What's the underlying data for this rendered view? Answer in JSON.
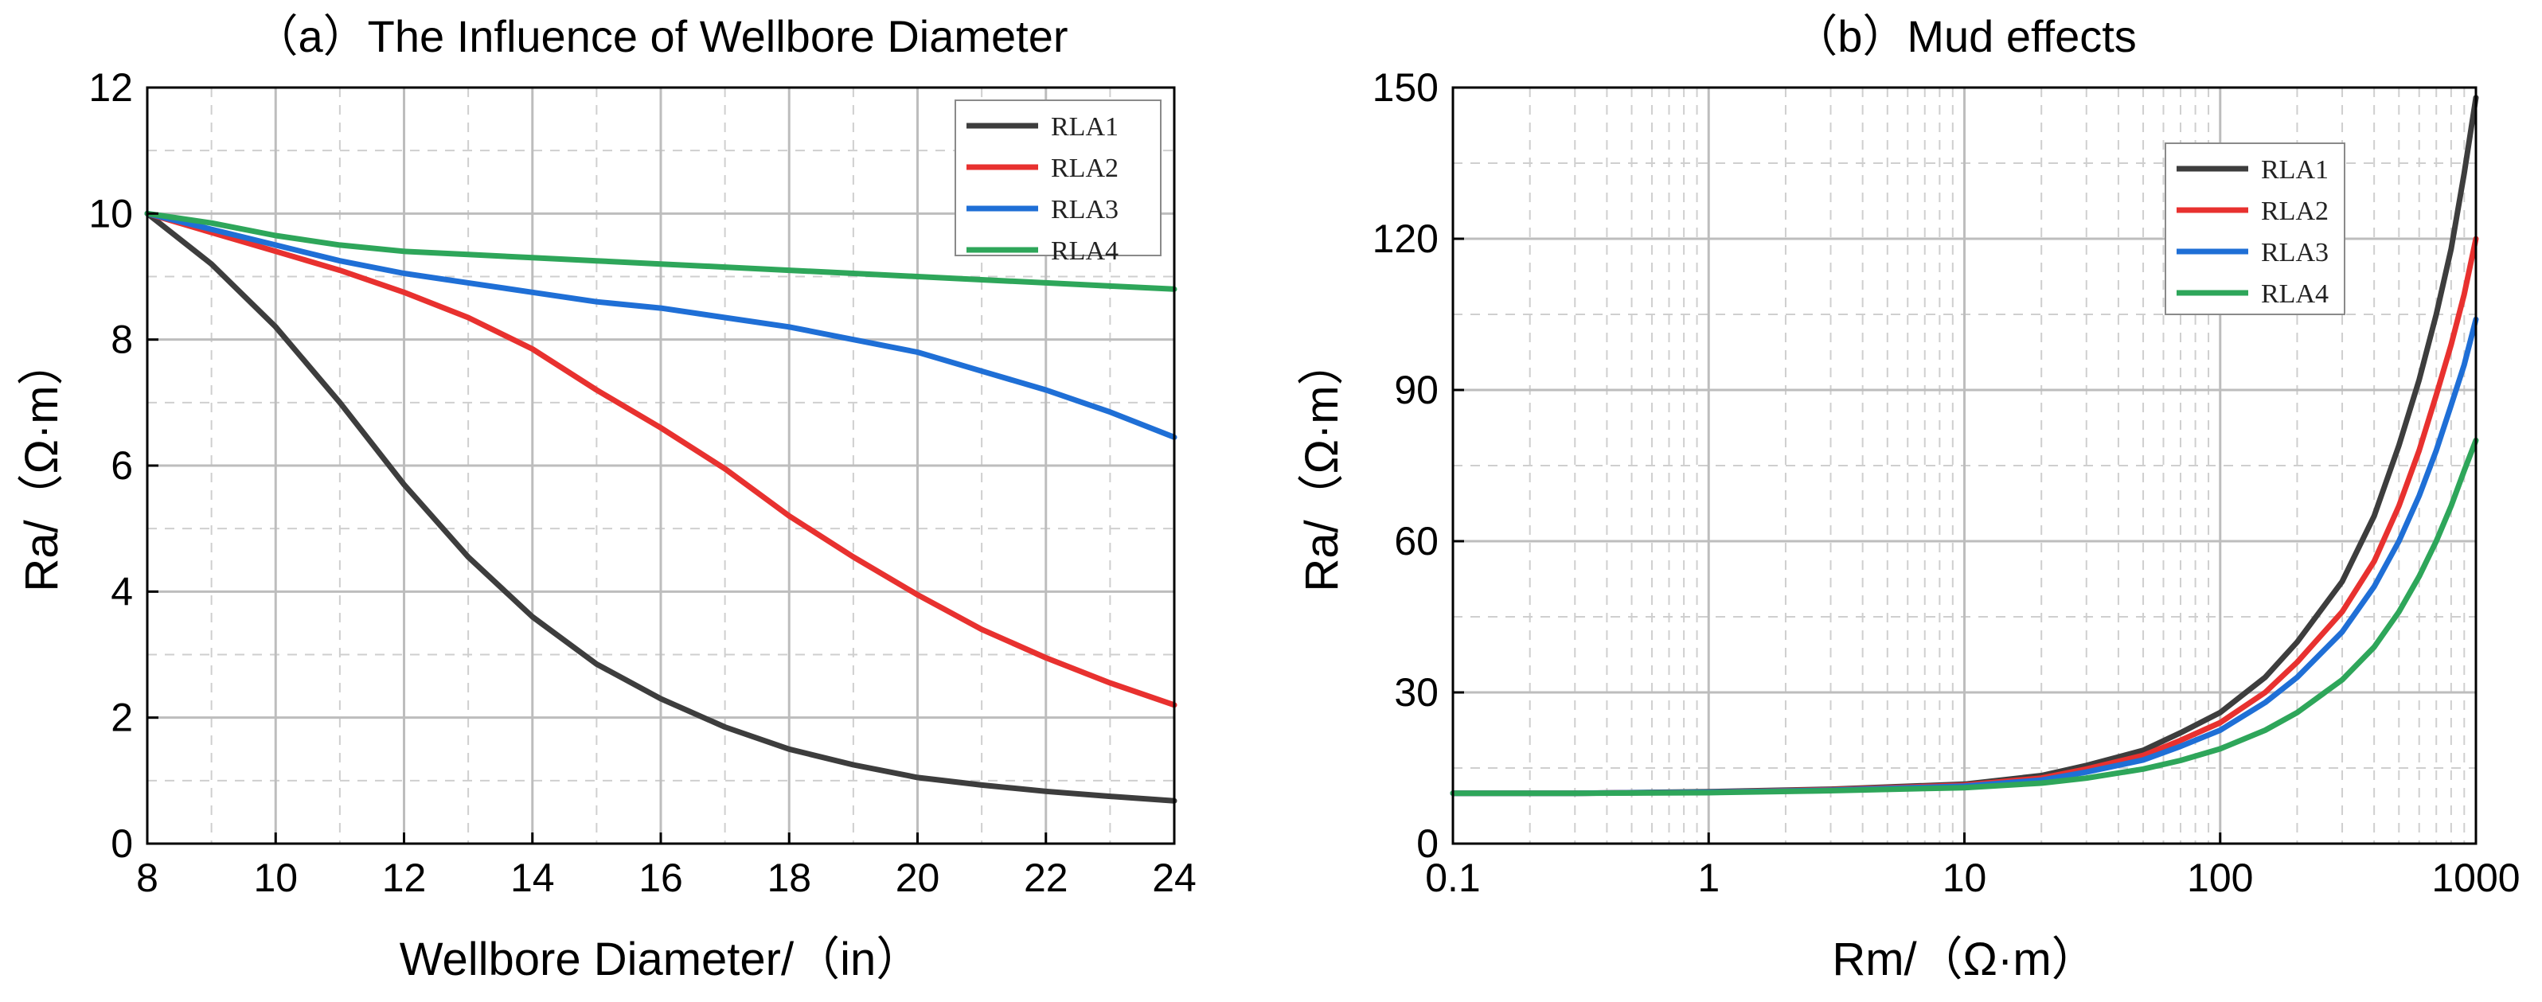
{
  "chart_data": [
    {
      "type": "line",
      "title": "（a）The Influence of Wellbore Diameter",
      "xlabel": "Wellbore Diameter/（in）",
      "ylabel": "Ra/（Ω·m）",
      "xscale": "linear",
      "xlim": [
        8,
        24
      ],
      "ylim": [
        0,
        12
      ],
      "xticks": [
        8,
        10,
        12,
        14,
        16,
        18,
        20,
        22,
        24
      ],
      "yticks": [
        0,
        2,
        4,
        6,
        8,
        10,
        12
      ],
      "xminor": [
        9,
        11,
        13,
        15,
        17,
        19,
        21,
        23
      ],
      "yminor": [
        1,
        3,
        5,
        7,
        9,
        11
      ],
      "grid": true,
      "legend_position": "top-right",
      "series": [
        {
          "name": "RLA1",
          "color": "#3d3d3d",
          "x": [
            8,
            9,
            10,
            11,
            12,
            13,
            14,
            15,
            16,
            17,
            18,
            19,
            20,
            21,
            22,
            23,
            24
          ],
          "y": [
            10.0,
            9.2,
            8.2,
            7.0,
            5.7,
            4.55,
            3.6,
            2.85,
            2.3,
            1.85,
            1.5,
            1.25,
            1.05,
            0.93,
            0.83,
            0.75,
            0.68
          ]
        },
        {
          "name": "RLA2",
          "color": "#e8312f",
          "x": [
            8,
            9,
            10,
            11,
            12,
            13,
            14,
            15,
            16,
            17,
            18,
            19,
            20,
            21,
            22,
            23,
            24
          ],
          "y": [
            10.0,
            9.7,
            9.4,
            9.1,
            8.75,
            8.35,
            7.85,
            7.2,
            6.6,
            5.95,
            5.2,
            4.55,
            3.95,
            3.4,
            2.95,
            2.55,
            2.2
          ]
        },
        {
          "name": "RLA3",
          "color": "#1f6fd6",
          "x": [
            8,
            9,
            10,
            11,
            12,
            13,
            14,
            15,
            16,
            17,
            18,
            19,
            20,
            21,
            22,
            23,
            24
          ],
          "y": [
            10.0,
            9.75,
            9.5,
            9.25,
            9.05,
            8.9,
            8.75,
            8.6,
            8.5,
            8.35,
            8.2,
            8.0,
            7.8,
            7.5,
            7.2,
            6.85,
            6.45
          ]
        },
        {
          "name": "RLA4",
          "color": "#2ea65a",
          "x": [
            8,
            9,
            10,
            11,
            12,
            13,
            14,
            15,
            16,
            17,
            18,
            19,
            20,
            21,
            22,
            23,
            24
          ],
          "y": [
            10.0,
            9.85,
            9.65,
            9.5,
            9.4,
            9.35,
            9.3,
            9.25,
            9.2,
            9.15,
            9.1,
            9.05,
            9.0,
            8.95,
            8.9,
            8.85,
            8.8
          ]
        }
      ]
    },
    {
      "type": "line",
      "title": "（b）Mud effects",
      "xlabel": "Rm/（Ω·m）",
      "ylabel": "Ra/（Ω·m）",
      "xscale": "log",
      "xlim": [
        0.1,
        1000
      ],
      "ylim": [
        0,
        150
      ],
      "xticks": [
        0.1,
        1,
        10,
        100,
        1000
      ],
      "xtick_labels": [
        "0.1",
        "1",
        "10",
        "100",
        "1000"
      ],
      "yticks": [
        0,
        30,
        60,
        90,
        120,
        150
      ],
      "yminor": [
        15,
        45,
        75,
        105,
        135
      ],
      "grid": true,
      "legend_position": "top-right",
      "series": [
        {
          "name": "RLA1",
          "color": "#3d3d3d",
          "x": [
            0.1,
            0.3,
            1,
            3,
            10,
            20,
            30,
            50,
            70,
            100,
            150,
            200,
            300,
            400,
            500,
            600,
            700,
            800,
            900,
            1000
          ],
          "y": [
            10,
            10,
            10.3,
            10.8,
            11.8,
            13.5,
            15.5,
            18.5,
            22,
            26,
            33,
            40,
            52,
            65,
            79,
            92,
            105,
            118,
            133,
            148
          ]
        },
        {
          "name": "RLA2",
          "color": "#e8312f",
          "x": [
            0.1,
            0.3,
            1,
            3,
            10,
            20,
            30,
            50,
            70,
            100,
            150,
            200,
            300,
            400,
            500,
            600,
            700,
            800,
            900,
            1000
          ],
          "y": [
            10,
            10,
            10.2,
            10.7,
            11.6,
            13,
            14.8,
            17.5,
            20.5,
            24,
            30,
            36,
            46,
            56,
            67,
            78,
            89,
            99,
            109,
            120
          ]
        },
        {
          "name": "RLA3",
          "color": "#1f6fd6",
          "x": [
            0.1,
            0.3,
            1,
            3,
            10,
            20,
            30,
            50,
            70,
            100,
            150,
            200,
            300,
            400,
            500,
            600,
            700,
            800,
            900,
            1000
          ],
          "y": [
            10,
            10,
            10.2,
            10.6,
            11.4,
            12.6,
            14.2,
            16.6,
            19.3,
            22.5,
            28,
            33,
            42,
            51,
            60,
            69,
            78,
            87,
            95,
            104
          ]
        },
        {
          "name": "RLA4",
          "color": "#2ea65a",
          "x": [
            0.1,
            0.3,
            1,
            3,
            10,
            20,
            30,
            50,
            70,
            100,
            150,
            200,
            300,
            400,
            500,
            600,
            700,
            800,
            900,
            1000
          ],
          "y": [
            10,
            10,
            10.1,
            10.5,
            11.1,
            12,
            13,
            14.8,
            16.5,
            18.8,
            22.5,
            26,
            32.5,
            39,
            46,
            53,
            60,
            67,
            74,
            80
          ]
        }
      ]
    }
  ]
}
